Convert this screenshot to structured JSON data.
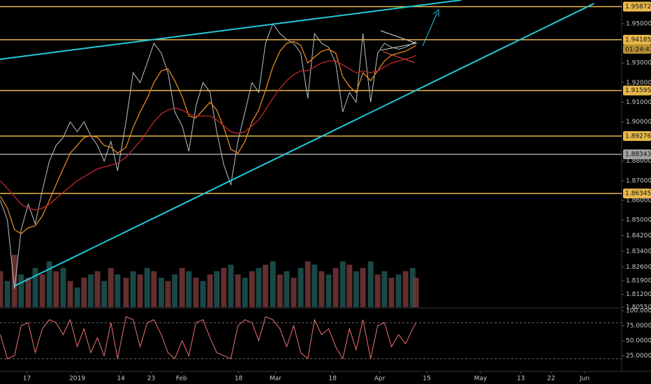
{
  "chart_data": {
    "type": "line",
    "xlim": [
      -8,
      177
    ],
    "xticks": [
      {
        "value": 0,
        "label": "17"
      },
      {
        "value": 15,
        "label": "2019"
      },
      {
        "value": 28,
        "label": "14"
      },
      {
        "value": 37,
        "label": "23"
      },
      {
        "value": 46,
        "label": "Feb"
      },
      {
        "value": 63,
        "label": "18"
      },
      {
        "value": 74,
        "label": "Mar"
      },
      {
        "value": 91,
        "label": "18"
      },
      {
        "value": 105,
        "label": "Apr"
      },
      {
        "value": 119,
        "label": "15"
      },
      {
        "value": 135,
        "label": "May"
      },
      {
        "value": 147,
        "label": "13"
      },
      {
        "value": 156,
        "label": "22"
      },
      {
        "value": 166,
        "label": "Jun"
      }
    ],
    "ylim": [
      1.8055,
      1.9621
    ],
    "yticks": [
      {
        "value": 1.95,
        "label": "1.95000"
      },
      {
        "value": 1.93,
        "label": "1.93000"
      },
      {
        "value": 1.92,
        "label": "1.92000"
      },
      {
        "value": 1.91,
        "label": "1.91000"
      },
      {
        "value": 1.9,
        "label": "1.90000"
      },
      {
        "value": 1.88,
        "label": "1.88000"
      },
      {
        "value": 1.87,
        "label": "1.87000"
      },
      {
        "value": 1.86,
        "label": "1.86000"
      },
      {
        "value": 1.85,
        "label": "1.85000"
      },
      {
        "value": 1.842,
        "label": "1.84200"
      },
      {
        "value": 1.834,
        "label": "1.83400"
      },
      {
        "value": 1.826,
        "label": "1.82600"
      },
      {
        "value": 1.819,
        "label": "1.81900"
      },
      {
        "value": 1.812,
        "label": "1.81200"
      },
      {
        "value": 1.8055,
        "label": "1.80550"
      }
    ],
    "x": [
      -7.9,
      -5.8,
      -3.7,
      -1.7,
      0.4,
      2.5,
      4.6,
      6.7,
      8.7,
      10.8,
      12.9,
      15,
      17,
      19,
      21,
      23,
      25,
      27,
      29.5,
      31.6,
      33.7,
      35.8,
      37.8,
      40,
      42,
      44,
      46.2,
      48.2,
      50.3,
      52.4,
      54.5,
      56.5,
      58.6,
      60.7,
      62.8,
      64.9,
      67,
      69,
      71,
      73.2,
      75.3,
      77.3,
      79.4,
      81.5,
      83.6,
      85.6,
      87.7,
      89.8,
      91.9,
      94,
      96,
      98,
      100,
      102.3,
      104.4,
      106.4,
      108.5,
      110.6,
      112.7,
      114.8,
      115.8
    ],
    "series": [
      {
        "color": "#b8c4c8",
        "values": [
          1.86,
          1.85,
          1.815,
          1.845,
          1.858,
          1.848,
          1.865,
          1.88,
          1.888,
          1.892,
          1.9,
          1.895,
          1.9,
          1.893,
          1.888,
          1.88,
          1.89,
          1.875,
          1.9,
          1.925,
          1.92,
          1.93,
          1.94,
          1.935,
          1.925,
          1.905,
          1.898,
          1.885,
          1.908,
          1.92,
          1.915,
          1.895,
          1.878,
          1.868,
          1.89,
          1.905,
          1.92,
          1.915,
          1.94,
          1.95,
          1.945,
          1.942,
          1.94,
          1.935,
          1.912,
          1.945,
          1.94,
          1.938,
          1.93,
          1.905,
          1.915,
          1.91,
          1.945,
          1.91,
          1.935,
          1.94,
          1.938,
          1.937,
          1.938,
          1.94,
          1.941
        ]
      },
      {
        "color": "#e8871e",
        "values": [
          1.862,
          1.856,
          1.845,
          1.843,
          1.846,
          1.847,
          1.852,
          1.86,
          1.868,
          1.876,
          1.884,
          1.888,
          1.892,
          1.893,
          1.892,
          1.888,
          1.887,
          1.884,
          1.887,
          1.897,
          1.905,
          1.912,
          1.92,
          1.926,
          1.927,
          1.921,
          1.913,
          1.903,
          1.902,
          1.906,
          1.91,
          1.906,
          1.897,
          1.886,
          1.884,
          1.89,
          1.9,
          1.906,
          1.916,
          1.928,
          1.936,
          1.94,
          1.941,
          1.939,
          1.93,
          1.933,
          1.936,
          1.937,
          1.935,
          1.923,
          1.918,
          1.915,
          1.925,
          1.921,
          1.926,
          1.931,
          1.934,
          1.935,
          1.936,
          1.938,
          1.939
        ]
      },
      {
        "color": "#c0282d",
        "values": [
          1.87,
          1.866,
          1.862,
          1.858,
          1.856,
          1.855,
          1.856,
          1.858,
          1.861,
          1.864,
          1.867,
          1.87,
          1.872,
          1.874,
          1.876,
          1.877,
          1.878,
          1.879,
          1.882,
          1.886,
          1.89,
          1.895,
          1.9,
          1.904,
          1.906,
          1.907,
          1.906,
          1.904,
          1.903,
          1.903,
          1.903,
          1.901,
          1.898,
          1.895,
          1.894,
          1.895,
          1.898,
          1.901,
          1.906,
          1.912,
          1.917,
          1.921,
          1.924,
          1.926,
          1.926,
          1.928,
          1.93,
          1.931,
          1.931,
          1.929,
          1.927,
          1.925,
          1.926,
          1.925,
          1.926,
          1.928,
          1.93,
          1.931,
          1.932,
          1.933,
          1.934
        ]
      }
    ],
    "volume": {
      "color": "#7a3a3a",
      "values": [
        55,
        40,
        80,
        50,
        45,
        60,
        50,
        70,
        55,
        60,
        40,
        30,
        45,
        50,
        55,
        40,
        60,
        50,
        45,
        55,
        50,
        60,
        55,
        45,
        40,
        50,
        60,
        55,
        45,
        40,
        50,
        55,
        60,
        65,
        50,
        45,
        55,
        60,
        65,
        70,
        50,
        55,
        45,
        60,
        70,
        65,
        55,
        50,
        60,
        70,
        65,
        55,
        60,
        70,
        50,
        55,
        45,
        50,
        55,
        60,
        45
      ]
    },
    "levels": [
      {
        "value": 1.95872,
        "color": "#e8b84a"
      },
      {
        "value": 1.94185,
        "color": "#e8b84a"
      },
      {
        "value": 1.91595,
        "color": "#e8b84a"
      },
      {
        "value": 1.89276,
        "color": "#e8b84a"
      },
      {
        "value": 1.88343,
        "color": "#a0a0a0"
      },
      {
        "value": 1.86345,
        "color": "#e8b84a"
      }
    ],
    "countdown": "01:24:43",
    "trendlines": [
      {
        "color": "#22c8d8",
        "x": [
          -8,
          129.3
        ],
        "y": [
          1.9319,
          1.9621
        ]
      },
      {
        "color": "#22c8d8",
        "x": [
          -3.7,
          168.8
        ],
        "y": [
          1.8163,
          1.9603
        ]
      }
    ],
    "oscillator": {
      "color": "#f07070",
      "ylim": [
        0,
        100
      ],
      "bands": [
        20,
        80
      ],
      "yticks": [
        {
          "value": 100,
          "label": "100.0000"
        },
        {
          "value": 75,
          "label": "75.0000"
        },
        {
          "value": 50,
          "label": "50.0000"
        },
        {
          "value": 25,
          "label": "25.0000"
        }
      ],
      "values": [
        60,
        20,
        25,
        75,
        80,
        30,
        70,
        85,
        80,
        60,
        85,
        40,
        70,
        30,
        55,
        25,
        80,
        20,
        90,
        85,
        40,
        80,
        85,
        60,
        30,
        20,
        50,
        25,
        80,
        85,
        55,
        30,
        25,
        20,
        75,
        85,
        80,
        50,
        90,
        85,
        70,
        40,
        75,
        30,
        20,
        85,
        60,
        70,
        40,
        20,
        70,
        35,
        85,
        20,
        75,
        80,
        40,
        60,
        45,
        70,
        80
      ]
    }
  }
}
